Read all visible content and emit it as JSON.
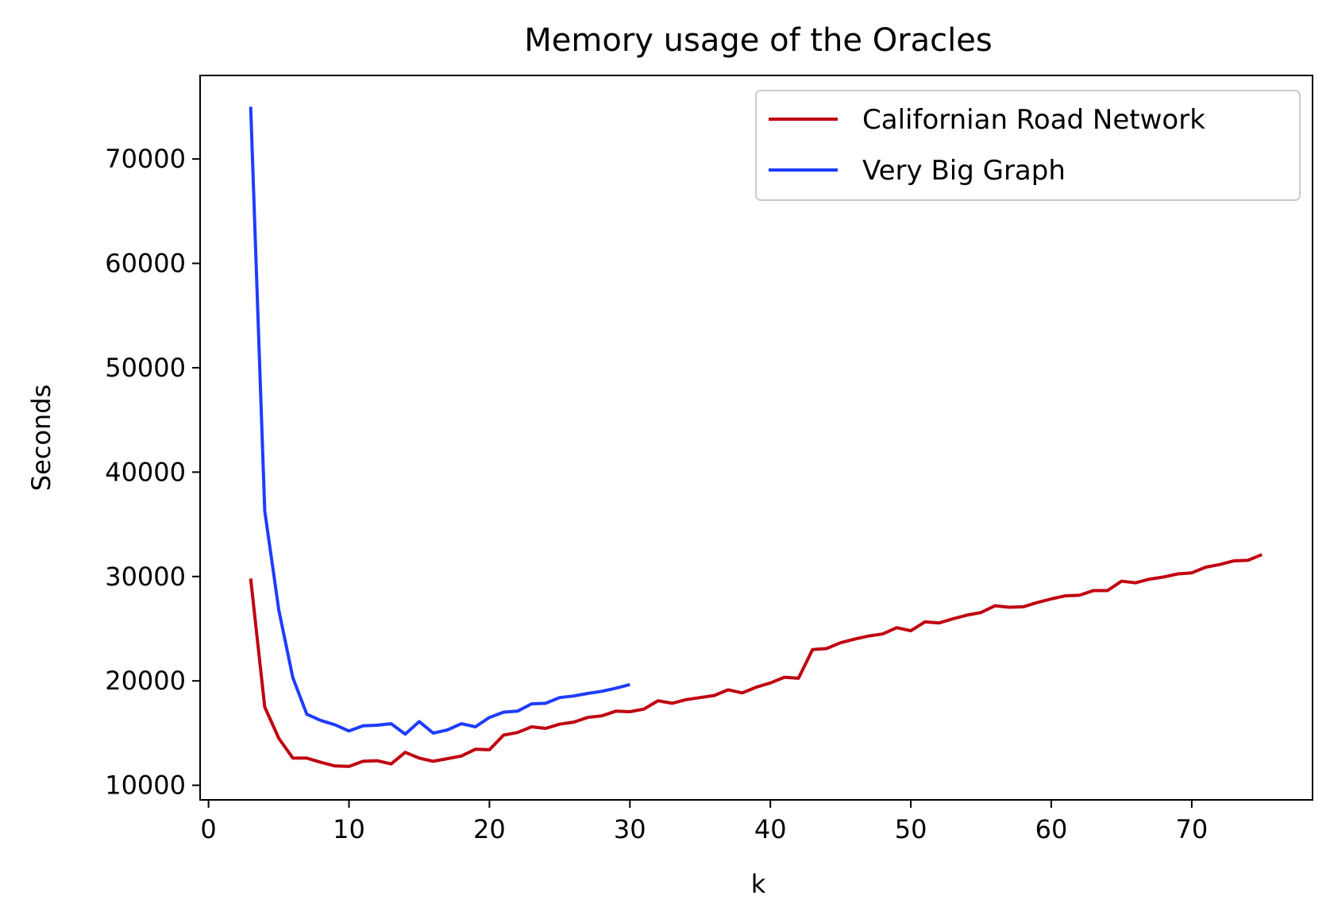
{
  "chart_data": {
    "type": "line",
    "title": "Memory usage of the Oracles",
    "xlabel": "k",
    "ylabel": "Seconds",
    "xlim": [
      -0.6,
      78.6
    ],
    "ylim": [
      8600,
      78000
    ],
    "xticks": [
      0,
      10,
      20,
      30,
      40,
      50,
      60,
      70
    ],
    "yticks": [
      10000,
      20000,
      30000,
      40000,
      50000,
      60000,
      70000
    ],
    "grid": false,
    "legend_position": "top-right",
    "series": [
      {
        "name": "Californian Road Network",
        "color": "#c00010",
        "x": [
          3,
          4,
          5,
          6,
          7,
          8,
          9,
          10,
          11,
          12,
          13,
          14,
          15,
          16,
          17,
          18,
          19,
          20,
          21,
          22,
          23,
          24,
          25,
          26,
          27,
          28,
          29,
          30,
          31,
          32,
          33,
          34,
          35,
          36,
          37,
          38,
          39,
          40,
          41,
          42,
          43,
          44,
          45,
          46,
          47,
          48,
          49,
          50,
          51,
          52,
          53,
          54,
          55,
          56,
          57,
          58,
          59,
          60,
          61,
          62,
          63,
          64,
          65,
          66,
          67,
          68,
          69,
          70,
          71,
          72,
          73,
          74,
          75
        ],
        "y": [
          29800,
          17500,
          14500,
          12600,
          12600,
          12200,
          11850,
          11800,
          12300,
          12350,
          12050,
          13150,
          12600,
          12300,
          12550,
          12800,
          13450,
          13400,
          14800,
          15050,
          15600,
          15450,
          15850,
          16050,
          16500,
          16650,
          17100,
          17050,
          17300,
          18100,
          17850,
          18200,
          18400,
          18600,
          19150,
          18850,
          19400,
          19800,
          20350,
          20250,
          23000,
          23100,
          23650,
          24000,
          24300,
          24500,
          25100,
          24800,
          25650,
          25550,
          25950,
          26300,
          26550,
          27200,
          27050,
          27100,
          27500,
          27850,
          28150,
          28200,
          28650,
          28650,
          29550,
          29400,
          29750,
          29950,
          30250,
          30350,
          30900,
          31150,
          31500,
          31550,
          32100
        ]
      },
      {
        "name": "Very Big Graph",
        "color": "#1e3cff",
        "x": [
          3,
          4,
          5,
          6,
          7,
          8,
          9,
          10,
          11,
          12,
          13,
          14,
          15,
          16,
          17,
          18,
          19,
          20,
          21,
          22,
          23,
          24,
          25,
          26,
          27,
          28,
          29,
          30
        ],
        "y": [
          75000,
          36300,
          26800,
          20300,
          16800,
          16200,
          15800,
          15200,
          15700,
          15750,
          15900,
          14900,
          16100,
          15000,
          15300,
          15900,
          15600,
          16500,
          17000,
          17100,
          17800,
          17850,
          18400,
          18550,
          18800,
          19000,
          19300,
          19650
        ]
      }
    ]
  }
}
